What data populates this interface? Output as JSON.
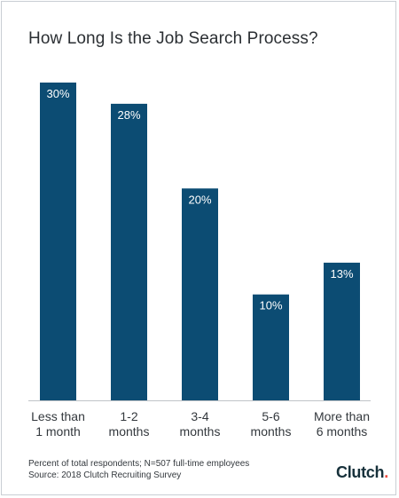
{
  "title": "How Long Is the Job Search Process?",
  "footnote_line1": "Percent of total respondents; N=507 full-time employees",
  "footnote_line2": "Source: 2018 Clutch Recruiting Survey",
  "logo_text": "Clutch",
  "colors": {
    "bar": "#0c4c73",
    "baseline": "#c0c4c8",
    "text": "#33383d",
    "logo_dot": "#ef4b3f"
  },
  "chart_data": {
    "type": "bar",
    "title": "How Long Is the Job Search Process?",
    "categories": [
      [
        "Less than",
        "1 month"
      ],
      [
        "1-2",
        "months"
      ],
      [
        "3-4",
        "months"
      ],
      [
        "5-6",
        "months"
      ],
      [
        "More than",
        "6 months"
      ]
    ],
    "values": [
      30,
      28,
      20,
      10,
      13
    ],
    "value_labels": [
      "30%",
      "28%",
      "20%",
      "10%",
      "13%"
    ],
    "ylim": [
      0,
      30
    ],
    "grid": false,
    "legend": "none"
  }
}
